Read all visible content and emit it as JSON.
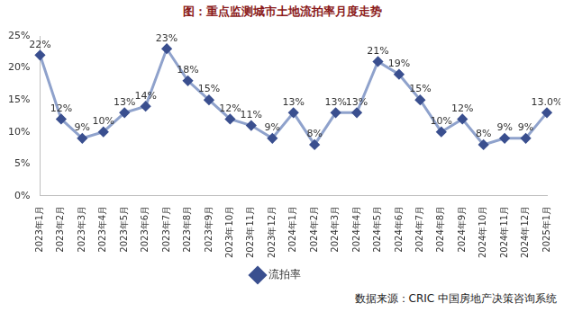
{
  "chart_data": {
    "type": "line",
    "title": "图：重点监测城市土地流拍率月度走势",
    "source": "数据来源：CRIC 中国房地产决策咨询系统",
    "categories": [
      "2023年1月",
      "2023年2月",
      "2023年3月",
      "2023年4月",
      "2023年5月",
      "2023年6月",
      "2023年7月",
      "2023年8月",
      "2023年9月",
      "2023年10月",
      "2023年11月",
      "2023年12月",
      "2024年1月",
      "2024年2月",
      "2024年3月",
      "2024年4月",
      "2024年5月",
      "2024年6月",
      "2024年7月",
      "2024年8月",
      "2024年9月",
      "2024年10月",
      "2024年11月",
      "2024年12月",
      "2025年1月"
    ],
    "series": [
      {
        "name": "流拍率",
        "color": "#8FA2CC",
        "marker": "diamond",
        "values": [
          22,
          12,
          9,
          10,
          13,
          14,
          23,
          18,
          15,
          12,
          11,
          9,
          13,
          8,
          13,
          13,
          21,
          19,
          15,
          10,
          12,
          8,
          9,
          9,
          13.0
        ],
        "value_labels": [
          "22%",
          "12%",
          "9%",
          "10%",
          "13%",
          "14%",
          "23%",
          "18%",
          "15%",
          "12%",
          "11%",
          "9%",
          "13%",
          "8%",
          "13%",
          "13%",
          "21%",
          "19%",
          "15%",
          "10%",
          "12%",
          "8%",
          "9%",
          "9%",
          "13.0%"
        ]
      }
    ],
    "ylim": [
      0,
      25
    ],
    "yticks": [
      {
        "value": 0,
        "label": "0%"
      },
      {
        "value": 5,
        "label": "5%"
      },
      {
        "value": 10,
        "label": "10%"
      },
      {
        "value": 15,
        "label": "15%"
      },
      {
        "value": 20,
        "label": "20%"
      },
      {
        "value": 25,
        "label": "25%"
      }
    ],
    "grid": false,
    "legend": "bottom",
    "data_labels": true
  }
}
